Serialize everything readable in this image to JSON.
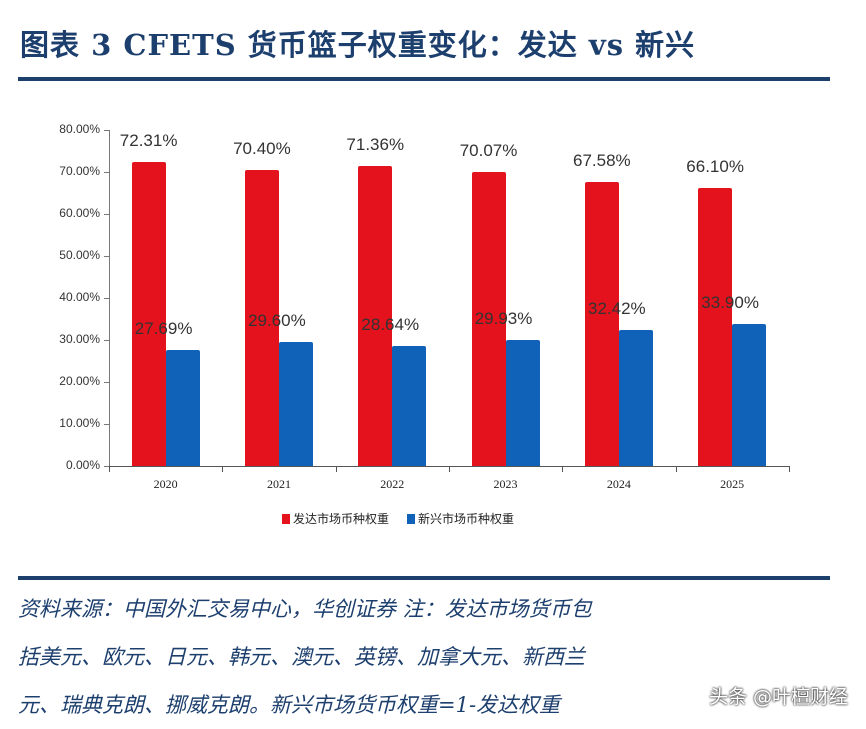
{
  "header": {
    "title": "图表 3   CFETS 货币篮子权重变化：发达 vs 新兴"
  },
  "chart_data": {
    "type": "bar",
    "title": "CFETS货币篮子权重变化：发达 vs 新兴",
    "categories": [
      "2020",
      "2021",
      "2022",
      "2023",
      "2024",
      "2025"
    ],
    "series": [
      {
        "name": "发达市场币种权重",
        "color": "#e3121c",
        "values": [
          72.31,
          70.4,
          71.36,
          70.07,
          67.58,
          66.1
        ],
        "labels": [
          "72.31%",
          "70.40%",
          "71.36%",
          "70.07%",
          "67.58%",
          "66.10%"
        ]
      },
      {
        "name": "新兴市场币种权重",
        "color": "#1061b8",
        "values": [
          27.69,
          29.6,
          28.64,
          29.93,
          32.42,
          33.9
        ],
        "labels": [
          "27.69%",
          "29.60%",
          "28.64%",
          "29.93%",
          "32.42%",
          "33.90%"
        ]
      }
    ],
    "yticks": [
      "0.00%",
      "10.00%",
      "20.00%",
      "30.00%",
      "40.00%",
      "50.00%",
      "60.00%",
      "70.00%",
      "80.00%"
    ],
    "ylim": [
      0,
      80
    ],
    "xlabel": "",
    "ylabel": "",
    "grid": false,
    "legend_position": "bottom"
  },
  "legend": {
    "developed": "发达市场币种权重",
    "emerging": "新兴市场币种权重"
  },
  "footer": {
    "line1": "资料来源：中国外汇交易中心，华创证券   注：发达市场货币包",
    "line2": "括美元、欧元、日元、韩元、澳元、英镑、加拿大元、新西兰",
    "line3": "元、瑞典克朗、挪威克朗。新兴市场货币权重=1-发达权重",
    "watermark": "头条 @叶檀财经"
  }
}
